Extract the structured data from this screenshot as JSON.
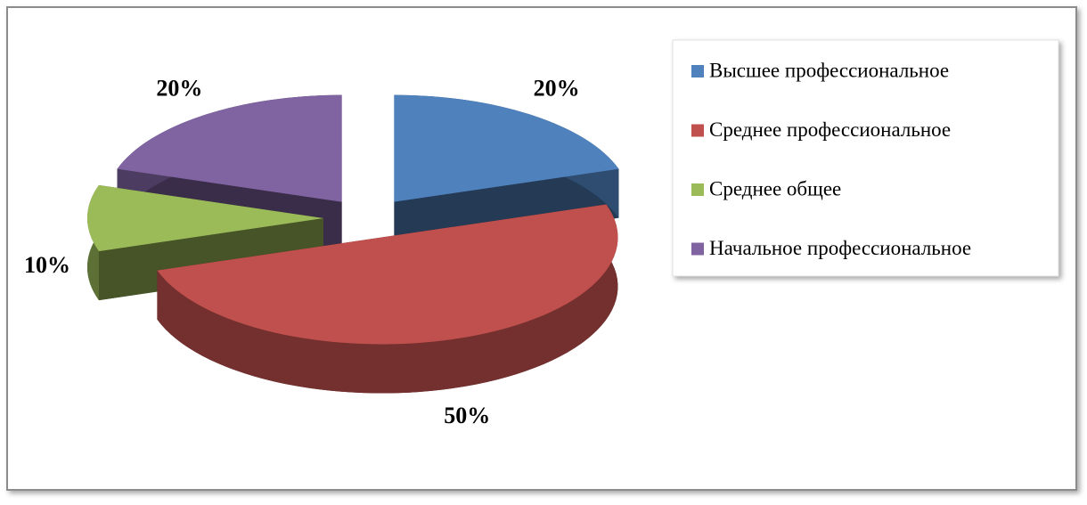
{
  "chart_data": {
    "type": "pie",
    "categories": [
      "Высшее профессиональное",
      "Среднее профессиональное",
      "Среднее общее",
      "Начальное профессиональное"
    ],
    "values": [
      20,
      50,
      10,
      20
    ],
    "value_labels": [
      "20%",
      "50%",
      "10%",
      "20%"
    ],
    "colors": [
      "#4f81bd",
      "#c0504d",
      "#9bbb59",
      "#8064a2"
    ],
    "legend": "right"
  }
}
